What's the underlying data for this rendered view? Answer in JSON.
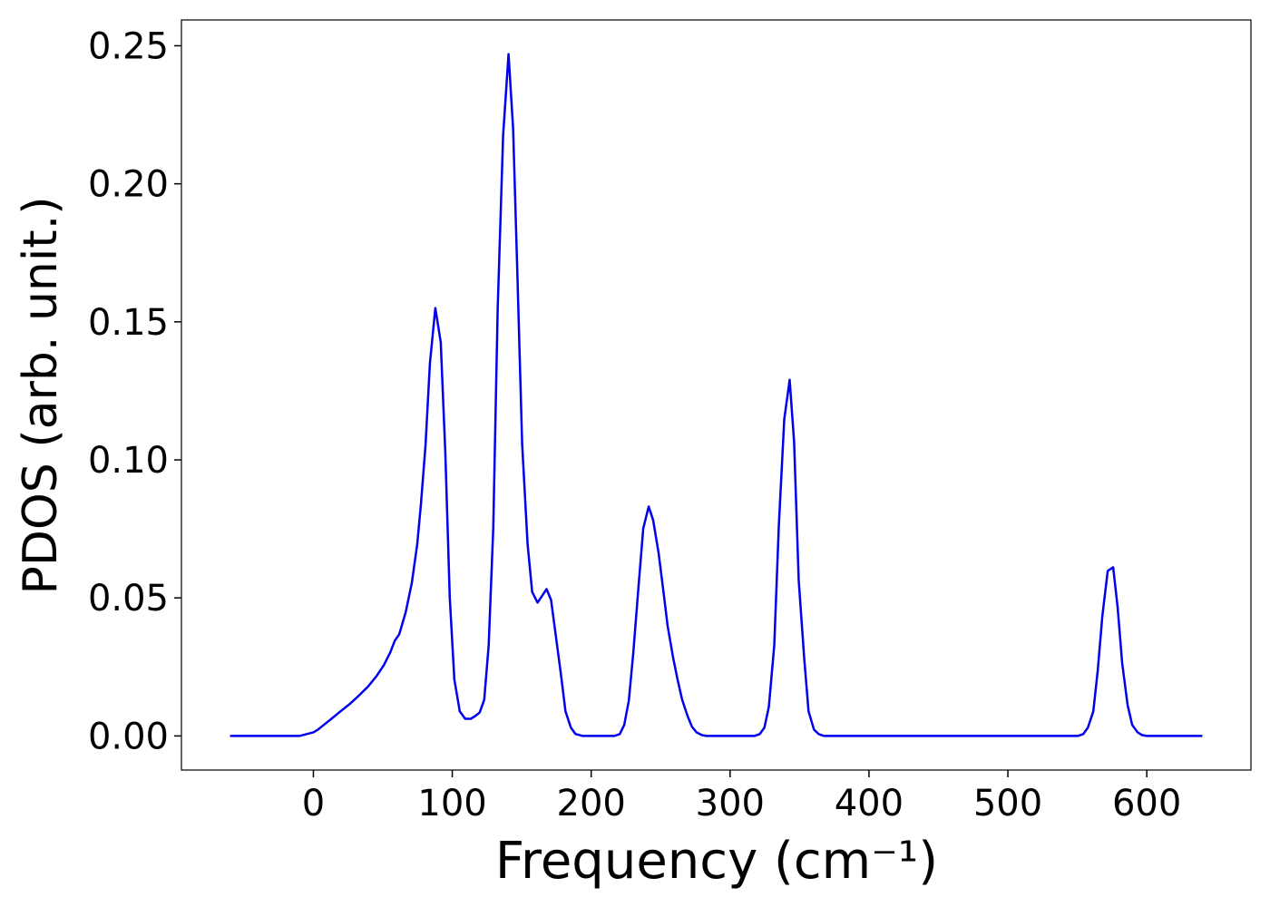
{
  "chart_data": {
    "type": "line",
    "x_label": "Frequency (cm⁻¹)",
    "y_label": "PDOS (arb. unit.)",
    "xlim": [
      -95,
      675
    ],
    "ylim": [
      -0.01235,
      0.25935
    ],
    "xticks": [
      0,
      100,
      200,
      300,
      400,
      500,
      600
    ],
    "yticks": [
      {
        "value": 0,
        "label": "0.00"
      },
      {
        "value": 0.05,
        "label": "0.05"
      },
      {
        "value": 0.1,
        "label": "0.10"
      },
      {
        "value": 0.15,
        "label": "0.15"
      },
      {
        "value": 0.2,
        "label": "0.20"
      },
      {
        "value": 0.25,
        "label": "0.25"
      }
    ],
    "grid": false,
    "series": [
      {
        "color": "#0000ee",
        "x": [
          -60,
          -40,
          -20,
          -10,
          0,
          3.3,
          6.5,
          13,
          19.5,
          26,
          32.5,
          39,
          45.5,
          50.7,
          55.3,
          58.6,
          61.8,
          66.4,
          70.9,
          74.8,
          77.4,
          80.7,
          83.9,
          87.8,
          91.7,
          95,
          98.2,
          101.5,
          105.4,
          109.3,
          113.2,
          116.5,
          119.7,
          123,
          126.2,
          129.5,
          132.7,
          136.6,
          140.5,
          143.8,
          147,
          150.3,
          154.2,
          157.5,
          161.4,
          167.9,
          171.1,
          174.4,
          178.3,
          181.5,
          185.4,
          188.7,
          193.9,
          216.7,
          220.6,
          223.8,
          227.1,
          230.3,
          234.2,
          237.5,
          241.4,
          244.6,
          248.5,
          251.8,
          255,
          258.9,
          262.2,
          265.5,
          269.4,
          272.6,
          275.9,
          279.8,
          283,
          317.5,
          321.4,
          324.7,
          327.9,
          331.8,
          335.1,
          339,
          342.9,
          346.1,
          349.4,
          353.3,
          356.5,
          360.4,
          363.7,
          367.6,
          550.4,
          554.3,
          557.6,
          561.5,
          564.7,
          568,
          571.9,
          575.8,
          579,
          582.3,
          586.2,
          589.5,
          593.4,
          596.6,
          600,
          640
        ],
        "values": [
          0,
          0,
          0,
          0,
          0.0013,
          0.0023,
          0.0036,
          0.0062,
          0.0089,
          0.0115,
          0.0145,
          0.0177,
          0.0217,
          0.0256,
          0.0302,
          0.0345,
          0.0368,
          0.0447,
          0.0555,
          0.0696,
          0.0838,
          0.105,
          0.135,
          0.155,
          0.1426,
          0.1025,
          0.05,
          0.0204,
          0.0089,
          0.0062,
          0.0062,
          0.0072,
          0.0085,
          0.0131,
          0.0328,
          0.0752,
          0.155,
          0.2175,
          0.247,
          0.22,
          0.165,
          0.1058,
          0.0696,
          0.0522,
          0.0483,
          0.0532,
          0.0493,
          0.0368,
          0.022,
          0.0089,
          0.003,
          0.0007,
          0,
          0,
          0.0007,
          0.004,
          0.0128,
          0.03,
          0.0549,
          0.0752,
          0.0831,
          0.0782,
          0.0664,
          0.0532,
          0.04,
          0.0286,
          0.0204,
          0.0131,
          0.0072,
          0.0033,
          0.0013,
          0.0003,
          0,
          0,
          0.0007,
          0.003,
          0.0105,
          0.0328,
          0.0762,
          0.1147,
          0.129,
          0.1064,
          0.0565,
          0.0286,
          0.0089,
          0.0023,
          0.0007,
          0,
          0,
          0.0007,
          0.003,
          0.0089,
          0.0237,
          0.0434,
          0.0598,
          0.0611,
          0.0467,
          0.0263,
          0.0112,
          0.004,
          0.0013,
          0.0003,
          0,
          0
        ]
      }
    ]
  }
}
